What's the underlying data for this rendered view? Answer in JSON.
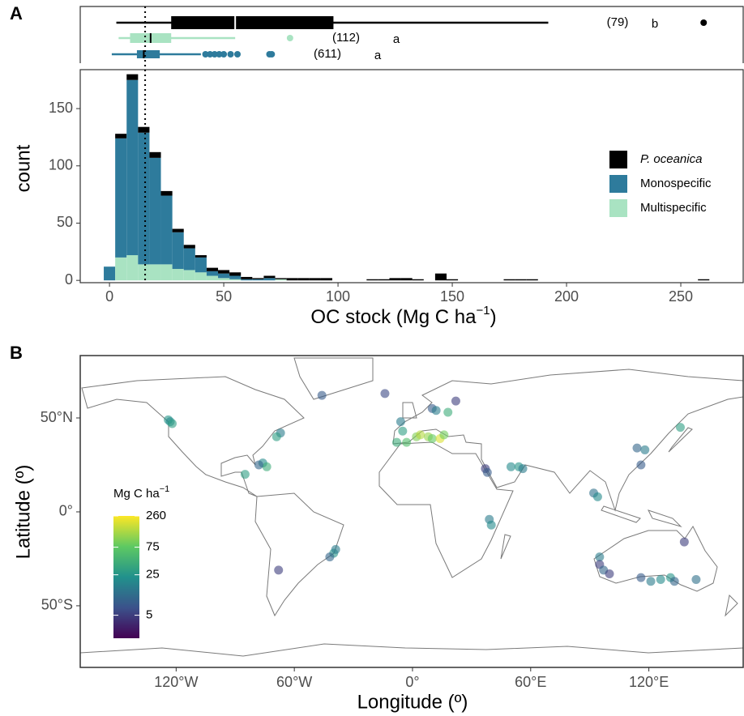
{
  "chart_data": [
    {
      "type": "box",
      "xlim": [
        -12.8,
        277.3
      ],
      "series": [
        {
          "color": "#000000",
          "median_color": "#ffffff",
          "whislo": 3,
          "q1": 27,
          "med": 55,
          "q3": 98,
          "whishi": 192,
          "fliers": [
            260
          ],
          "n_label": "(79)",
          "group_label": "b"
        },
        {
          "color": "#a9e3c2",
          "median_color": "#000000",
          "whislo": 4,
          "q1": 9,
          "med": 18,
          "q3": 27,
          "whishi": 55,
          "fliers": [
            79
          ],
          "n_label": "(112)",
          "group_label": "a"
        },
        {
          "color": "#2e7b9c",
          "median_color": "#000000",
          "whislo": 1,
          "q1": 12,
          "med": 15,
          "q3": 22,
          "whishi": 40,
          "fliers": [
            42,
            44,
            46,
            48,
            50,
            53,
            56,
            70,
            71
          ],
          "n_label": "(611)",
          "group_label": "a"
        }
      ]
    },
    {
      "type": "histogram",
      "panel_label": "A",
      "xlabel": "OC stock (Mg C ha",
      "xlabel_sup": "−1",
      "xlabel_end": ")",
      "ylabel": "count",
      "xlim": [
        -12.8,
        277.3
      ],
      "xticks": [
        0,
        50,
        100,
        150,
        200,
        250
      ],
      "ylim": [
        -2,
        184
      ],
      "yticks": [
        0,
        50,
        100,
        150
      ],
      "reference_line": 15.6,
      "legend": "right",
      "bins": [
        -2.5,
        2.5,
        7.5,
        12.5,
        17.5,
        22.5,
        27.5,
        32.5,
        37.5,
        42.5,
        47.5,
        52.5,
        57.5,
        62.5,
        67.5,
        72.5,
        77.5,
        82.5,
        87.5,
        92.5,
        97.5,
        102.5,
        107.5,
        112.5,
        117.5,
        122.5,
        127.5,
        132.5,
        137.5,
        142.5,
        147.5,
        152.5,
        157.5,
        162.5,
        167.5,
        172.5,
        177.5,
        182.5,
        187.5,
        192.5,
        197.5,
        202.5,
        207.5,
        212.5,
        217.5,
        222.5,
        227.5,
        232.5,
        237.5,
        242.5,
        247.5,
        252.5,
        257.5,
        262.5
      ],
      "series": [
        {
          "name": "P. oceanica",
          "color": "#000000",
          "font_style": "italic",
          "values": [
            0,
            4,
            5,
            5,
            5,
            4,
            3,
            3,
            2,
            3,
            3,
            3,
            2,
            1,
            2,
            1,
            2,
            2,
            2,
            2,
            0,
            0,
            0,
            1,
            1,
            2,
            2,
            1,
            0,
            6,
            1,
            0,
            0,
            0,
            0,
            1,
            1,
            1,
            0,
            0,
            0,
            0,
            0,
            0,
            0,
            0,
            0,
            0,
            0,
            0,
            0,
            0,
            1
          ]
        },
        {
          "name": "Monospecific",
          "color": "#2e7b9c",
          "font_style": "normal",
          "values": [
            12,
            104,
            153,
            115,
            93,
            60,
            32,
            19,
            13,
            4,
            4,
            3,
            1,
            1,
            2,
            0,
            0,
            0,
            0,
            0,
            0,
            0,
            0,
            0,
            0,
            0,
            0,
            0,
            0,
            0,
            0,
            0,
            0,
            0,
            0,
            0,
            0,
            0,
            0,
            0,
            0,
            0,
            0,
            0,
            0,
            0,
            0,
            0,
            0,
            0,
            0,
            0,
            0
          ]
        },
        {
          "name": "Multispecific",
          "color": "#a9e3c2",
          "font_style": "normal",
          "values": [
            0,
            20,
            22,
            14,
            14,
            14,
            10,
            9,
            7,
            4,
            2,
            1,
            0,
            0,
            0,
            1,
            0,
            0,
            0,
            0,
            0,
            0,
            0,
            0,
            0,
            0,
            0,
            0,
            0,
            0,
            0,
            0,
            0,
            0,
            0,
            0,
            0,
            0,
            0,
            0,
            0,
            0,
            0,
            0,
            0,
            0,
            0,
            0,
            0,
            0,
            0,
            0,
            0
          ]
        }
      ]
    },
    {
      "type": "map",
      "panel_label": "B",
      "xlabel": "Longitude (º)",
      "ylabel": "Latitude (º)",
      "xlim": [
        -168.7,
        167.9
      ],
      "ylim": [
        -82.8,
        83.2
      ],
      "xticks": [
        {
          "value": -120,
          "label": "120°W"
        },
        {
          "value": -60,
          "label": "60°W"
        },
        {
          "value": 0,
          "label": "0°"
        },
        {
          "value": 60,
          "label": "60°E"
        },
        {
          "value": 120,
          "label": "120°E"
        }
      ],
      "yticks": [
        {
          "value": 50,
          "label": "50°N"
        },
        {
          "value": 0,
          "label": "0°"
        },
        {
          "value": -50,
          "label": "50°S"
        }
      ],
      "colorbar_title": "Mg C ha",
      "colorbar_title_sup": "−1",
      "color_scale": "log",
      "clim": [
        2,
        260
      ],
      "cticks": [
        5,
        25,
        75,
        260
      ],
      "colormap": [
        "#440154",
        "#3b528b",
        "#21918c",
        "#5ec962",
        "#fde725"
      ],
      "x": [
        -124,
        -123,
        -122,
        -85,
        -67,
        -69,
        -76,
        -74,
        -78,
        -40,
        -42,
        -39,
        -68,
        -6,
        -5,
        -3,
        2,
        4,
        8,
        10,
        14,
        16,
        -8,
        10,
        12,
        22,
        -46,
        -14,
        18,
        37,
        38,
        50,
        54,
        56,
        39,
        40,
        92,
        94,
        114,
        118,
        136,
        116,
        95,
        95,
        97,
        100,
        116,
        121,
        126,
        131,
        133,
        138,
        144
      ],
      "y": [
        49,
        48,
        47,
        20,
        42,
        40,
        26,
        24,
        25,
        -22,
        -24,
        -20,
        -31,
        48,
        43,
        37,
        40,
        41,
        40,
        39,
        39,
        41,
        37,
        55,
        54,
        59,
        62,
        63,
        53,
        23,
        21,
        24,
        24,
        23,
        -4,
        -7,
        10,
        8,
        34,
        33,
        45,
        25,
        -24,
        -28,
        -31,
        -33,
        -35,
        -37,
        -36,
        -35,
        -37,
        -16,
        -36
      ],
      "values": [
        25,
        20,
        30,
        30,
        15,
        30,
        20,
        40,
        10,
        25,
        10,
        15,
        5,
        15,
        30,
        60,
        100,
        150,
        120,
        80,
        200,
        90,
        40,
        8,
        15,
        5,
        8,
        6,
        40,
        5,
        8,
        20,
        25,
        15,
        15,
        20,
        12,
        20,
        10,
        15,
        30,
        8,
        15,
        5,
        10,
        5,
        8,
        15,
        20,
        25,
        10,
        5,
        12
      ]
    }
  ]
}
